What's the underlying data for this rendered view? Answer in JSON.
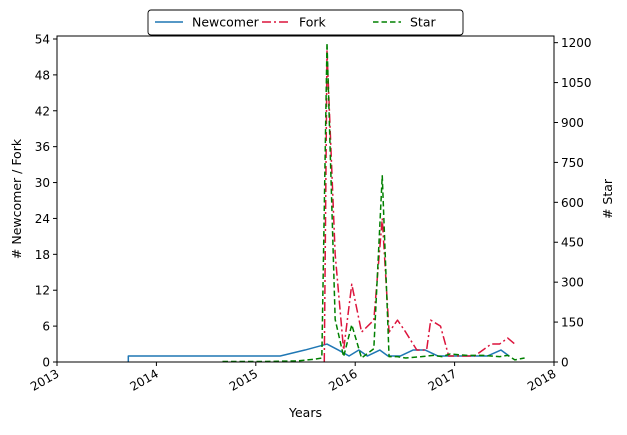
{
  "chart_data": {
    "type": "line",
    "xlabel": "Years",
    "ylabel_left": "# Newcomer / Fork",
    "ylabel_right": "# Star",
    "x_ticks": [
      "2013",
      "2014",
      "2015",
      "2016",
      "2017",
      "2018"
    ],
    "y_left_ticks": [
      "0",
      "6",
      "12",
      "18",
      "24",
      "30",
      "36",
      "42",
      "48",
      "54"
    ],
    "y_right_ticks": [
      "0",
      "150",
      "300",
      "450",
      "600",
      "750",
      "900",
      "1050",
      "1200"
    ],
    "xlim": [
      "2013-01-01",
      "2018-01-01"
    ],
    "ylim_left": [
      0,
      54.5
    ],
    "ylim_right": [
      0,
      1225
    ],
    "legend_position": "top-center",
    "series": [
      {
        "name": "Newcomer",
        "axis": "left",
        "color": "#1f77b4",
        "style": "solid",
        "points": [
          [
            "2013-09-20",
            0
          ],
          [
            "2013-09-20",
            1
          ],
          [
            "2015-04-01",
            1
          ],
          [
            "2015-07-01",
            2
          ],
          [
            "2015-09-20",
            3
          ],
          [
            "2015-11-01",
            2
          ],
          [
            "2015-12-10",
            1
          ],
          [
            "2016-01-15",
            2
          ],
          [
            "2016-02-15",
            1
          ],
          [
            "2016-04-01",
            2
          ],
          [
            "2016-05-01",
            1
          ],
          [
            "2016-06-15",
            1
          ],
          [
            "2016-08-01",
            2
          ],
          [
            "2016-09-15",
            2
          ],
          [
            "2016-11-01",
            1
          ],
          [
            "2017-02-01",
            1
          ],
          [
            "2017-05-01",
            1
          ],
          [
            "2017-06-20",
            2
          ],
          [
            "2017-07-20",
            1
          ]
        ]
      },
      {
        "name": "Fork",
        "axis": "left",
        "color": "#dc143c",
        "style": "dashdot",
        "points": [
          [
            "2015-09-10",
            0
          ],
          [
            "2015-09-20",
            52
          ],
          [
            "2015-10-20",
            18
          ],
          [
            "2015-11-20",
            2
          ],
          [
            "2015-12-20",
            13
          ],
          [
            "2016-01-25",
            5
          ],
          [
            "2016-03-10",
            7
          ],
          [
            "2016-04-10",
            24
          ],
          [
            "2016-05-05",
            5
          ],
          [
            "2016-06-05",
            7
          ],
          [
            "2016-07-05",
            5
          ],
          [
            "2016-08-15",
            2
          ],
          [
            "2016-09-20",
            2
          ],
          [
            "2016-10-05",
            7
          ],
          [
            "2016-11-10",
            6
          ],
          [
            "2016-12-10",
            1
          ],
          [
            "2017-01-15",
            1
          ],
          [
            "2017-02-15",
            1
          ],
          [
            "2017-03-15",
            1
          ],
          [
            "2017-04-15",
            2
          ],
          [
            "2017-05-15",
            3
          ],
          [
            "2017-06-15",
            3
          ],
          [
            "2017-07-15",
            4
          ],
          [
            "2017-08-10",
            3
          ]
        ]
      },
      {
        "name": "Star",
        "axis": "right",
        "color": "#008000",
        "style": "dashed",
        "points": [
          [
            "2014-09-01",
            2
          ],
          [
            "2015-02-01",
            2
          ],
          [
            "2015-06-01",
            4
          ],
          [
            "2015-08-01",
            10
          ],
          [
            "2015-09-01",
            15
          ],
          [
            "2015-09-20",
            1200
          ],
          [
            "2015-10-20",
            160
          ],
          [
            "2015-11-20",
            20
          ],
          [
            "2015-12-20",
            140
          ],
          [
            "2016-01-25",
            15
          ],
          [
            "2016-03-10",
            50
          ],
          [
            "2016-04-10",
            700
          ],
          [
            "2016-05-05",
            20
          ],
          [
            "2016-06-05",
            20
          ],
          [
            "2016-07-05",
            15
          ],
          [
            "2016-09-01",
            20
          ],
          [
            "2016-10-15",
            25
          ],
          [
            "2016-11-15",
            20
          ],
          [
            "2016-12-15",
            30
          ],
          [
            "2017-02-15",
            25
          ],
          [
            "2017-04-15",
            25
          ],
          [
            "2017-06-15",
            20
          ],
          [
            "2017-07-15",
            25
          ],
          [
            "2017-08-10",
            8
          ],
          [
            "2017-09-15",
            15
          ]
        ]
      }
    ]
  }
}
